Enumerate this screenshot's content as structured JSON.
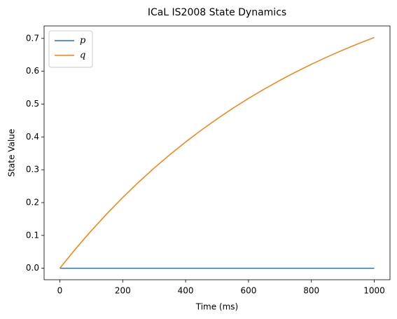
{
  "chart_data": {
    "type": "line",
    "title": "ICaL IS2008 State Dynamics",
    "x_label": "Time (ms)",
    "y_label": "State Value",
    "x": [
      0,
      50,
      100,
      150,
      200,
      250,
      300,
      350,
      400,
      450,
      500,
      550,
      600,
      650,
      700,
      750,
      800,
      850,
      900,
      950,
      1000
    ],
    "series": [
      {
        "name": "p",
        "color": "#1f77b4",
        "values": [
          0,
          0,
          0,
          0,
          0,
          0,
          0,
          0,
          0,
          0,
          0,
          0,
          0,
          0,
          0,
          0,
          0,
          0,
          0,
          0,
          0
        ]
      },
      {
        "name": "q",
        "color": "#ff7f0e",
        "values": [
          0,
          0.0589,
          0.1143,
          0.1664,
          0.2155,
          0.2617,
          0.3051,
          0.3461,
          0.3846,
          0.4208,
          0.4549,
          0.487,
          0.5172,
          0.5456,
          0.5724,
          0.5975,
          0.6213,
          0.6435,
          0.6645,
          0.6843,
          0.7029
        ]
      }
    ],
    "xlim": [
      -50,
      1050
    ],
    "ylim": [
      -0.035,
      0.738
    ],
    "xticks": [
      0,
      200,
      400,
      600,
      800,
      1000
    ],
    "yticks": [
      {
        "value": 0,
        "label": "0.0"
      },
      0.1,
      0.2,
      0.3,
      0.4,
      0.5,
      0.6,
      0.7
    ],
    "legend": "upper left",
    "grid": false
  }
}
